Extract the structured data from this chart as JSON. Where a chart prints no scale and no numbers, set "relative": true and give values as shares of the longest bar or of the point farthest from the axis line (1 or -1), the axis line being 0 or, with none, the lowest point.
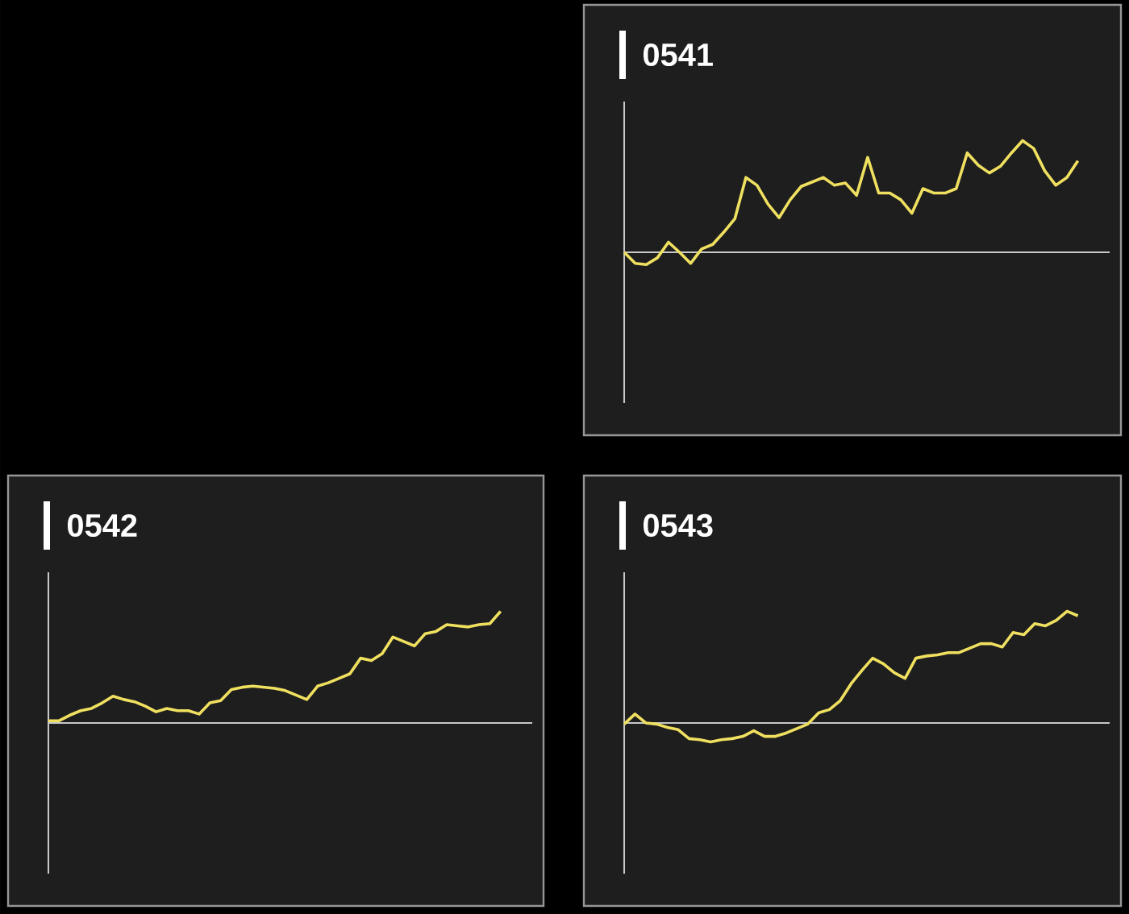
{
  "chart_data": [
    {
      "type": "line",
      "title": "0541",
      "relative": true,
      "categories": [
        null,
        null,
        null,
        null,
        null,
        null,
        null,
        null,
        null,
        null,
        null,
        null,
        null,
        null,
        null,
        null,
        null,
        null,
        null,
        null,
        null,
        null,
        null,
        null,
        null,
        null,
        null,
        null,
        null,
        null,
        null,
        null,
        null,
        null,
        null,
        null,
        null,
        null,
        null,
        null,
        null,
        null
      ],
      "series": [
        {
          "color": "#f0e060",
          "values": [
            0,
            -0.1,
            -0.11,
            -0.05,
            0.09,
            0,
            -0.1,
            0.03,
            0.07,
            0.18,
            0.3,
            0.67,
            0.6,
            0.43,
            0.31,
            0.47,
            0.59,
            0.63,
            0.67,
            0.6,
            0.62,
            0.51,
            0.85,
            0.53,
            0.53,
            0.47,
            0.35,
            0.57,
            0.53,
            0.53,
            0.57,
            0.89,
            0.78,
            0.71,
            0.77,
            0.89,
            1,
            0.93,
            0.73,
            0.6,
            0.67,
            0.82
          ]
        }
      ]
    },
    {
      "type": "line",
      "title": "0542",
      "relative": true,
      "categories": [
        null,
        null,
        null,
        null,
        null,
        null,
        null,
        null,
        null,
        null,
        null,
        null,
        null,
        null,
        null,
        null,
        null,
        null,
        null,
        null,
        null,
        null,
        null,
        null,
        null,
        null,
        null,
        null,
        null,
        null,
        null,
        null,
        null,
        null,
        null,
        null,
        null,
        null,
        null,
        null,
        null,
        null,
        null
      ],
      "series": [
        {
          "color": "#f0e060",
          "values": [
            0.02,
            0.02,
            0.07,
            0.11,
            0.13,
            0.18,
            0.24,
            0.21,
            0.19,
            0.15,
            0.1,
            0.13,
            0.11,
            0.11,
            0.08,
            0.18,
            0.2,
            0.3,
            0.32,
            0.33,
            0.32,
            0.31,
            0.29,
            0.25,
            0.21,
            0.33,
            0.36,
            0.4,
            0.44,
            0.58,
            0.56,
            0.62,
            0.77,
            0.73,
            0.69,
            0.8,
            0.82,
            0.88,
            0.87,
            0.86,
            0.88,
            0.89,
            1
          ]
        }
      ]
    },
    {
      "type": "line",
      "title": "0543",
      "relative": true,
      "categories": [
        null,
        null,
        null,
        null,
        null,
        null,
        null,
        null,
        null,
        null,
        null,
        null,
        null,
        null,
        null,
        null,
        null,
        null,
        null,
        null,
        null,
        null,
        null,
        null,
        null,
        null,
        null,
        null,
        null,
        null,
        null,
        null,
        null,
        null,
        null,
        null,
        null,
        null,
        null,
        null,
        null,
        null,
        null
      ],
      "series": [
        {
          "color": "#f0e060",
          "values": [
            -0.01,
            0.08,
            0,
            -0.01,
            -0.04,
            -0.06,
            -0.14,
            -0.15,
            -0.17,
            -0.15,
            -0.14,
            -0.12,
            -0.07,
            -0.12,
            -0.12,
            -0.09,
            -0.05,
            -0.01,
            0.09,
            0.12,
            0.2,
            0.35,
            0.47,
            0.58,
            0.53,
            0.45,
            0.4,
            0.58,
            0.6,
            0.61,
            0.63,
            0.63,
            0.67,
            0.71,
            0.71,
            0.68,
            0.81,
            0.79,
            0.89,
            0.87,
            0.92,
            1,
            0.96
          ]
        }
      ]
    }
  ]
}
